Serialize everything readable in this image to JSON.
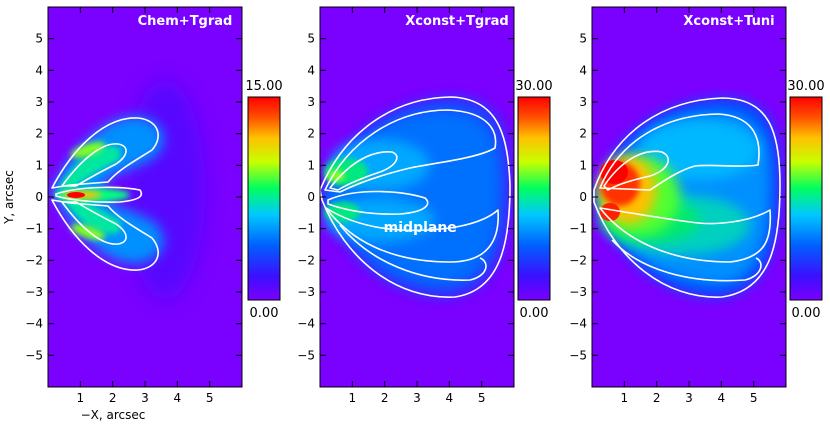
{
  "chart_data": [
    {
      "type": "heatmap",
      "title": "Chem+Tgrad",
      "xlabel": "-X, arcsec",
      "ylabel": "Y, arcsec",
      "xlim": [
        0,
        6
      ],
      "ylim": [
        -6,
        6
      ],
      "xticks": [
        "1",
        "2",
        "3",
        "4",
        "5"
      ],
      "yticks": [
        "-5",
        "-4",
        "-3",
        "-2",
        "-1",
        "0",
        "1",
        "2",
        "3",
        "4",
        "5"
      ],
      "colorbar": {
        "min": 0.0,
        "max": 15.0,
        "min_label": "0.00",
        "max_label": "15.00"
      },
      "annotation": ""
    },
    {
      "type": "heatmap",
      "title": "Xconst+Tgrad",
      "xlabel": "",
      "ylabel": "",
      "xlim": [
        0,
        6
      ],
      "ylim": [
        -6,
        6
      ],
      "xticks": [
        "1",
        "2",
        "3",
        "4",
        "5"
      ],
      "yticks": [
        "-5",
        "-4",
        "-3",
        "-2",
        "-1",
        "0",
        "1",
        "2",
        "3",
        "4",
        "5"
      ],
      "colorbar": {
        "min": 0.0,
        "max": 30.0,
        "min_label": "0.00",
        "max_label": "30.00"
      },
      "annotation": "midplane"
    },
    {
      "type": "heatmap",
      "title": "Xconst+Tuni",
      "xlabel": "",
      "ylabel": "",
      "xlim": [
        0,
        6
      ],
      "ylim": [
        -6,
        6
      ],
      "xticks": [
        "1",
        "2",
        "3",
        "4",
        "5"
      ],
      "yticks": [
        "-5",
        "-4",
        "-3",
        "-2",
        "-1",
        "0",
        "1",
        "2",
        "3",
        "4",
        "5"
      ],
      "colorbar": {
        "min": 0.0,
        "max": 30.0,
        "min_label": "0.00",
        "max_label": "30.00"
      },
      "annotation": ""
    }
  ],
  "colors": {
    "background": "#7a00ff",
    "contour": "#ffffff",
    "colormap": [
      "#7a00ff",
      "#3a10ff",
      "#0060ff",
      "#00c8ff",
      "#00ff60",
      "#c8ff00",
      "#ffc000",
      "#ff5000",
      "#ff0000"
    ]
  }
}
